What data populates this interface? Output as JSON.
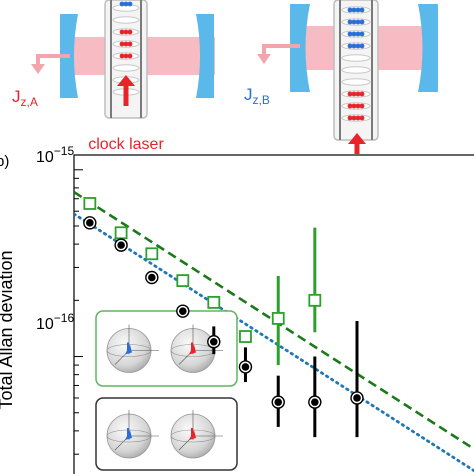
{
  "schematic": {
    "label_a_main": "J",
    "label_a_sub": "z,A",
    "label_b_main": "J",
    "label_b_sub": "z,B",
    "clock_laser_label": "clock laser",
    "colors": {
      "red": "#e8232a",
      "blue": "#2a6fd6",
      "mirror": "#5bb8ea",
      "beam": "#f6b5bd",
      "tube": "#bfbfbf"
    }
  },
  "panel_label": "b)",
  "chart_data": {
    "type": "scatter",
    "ylabel": "Total Allan deviation",
    "yscale": "log",
    "xscale": "log",
    "y_tick_labels": [
      {
        "value": 1e-15,
        "base": "10",
        "exp": "−15"
      },
      {
        "value": 1e-16,
        "base": "10",
        "exp": "−16"
      }
    ],
    "xlim": [
      1,
      100
    ],
    "ylim": [
      2.35e-17,
      1.2e-15
    ],
    "series": [
      {
        "color": "#2ca02c",
        "marker": "open-square",
        "points": [
          {
            "x": 1.2,
            "y": 6.6e-16
          },
          {
            "x": 1.72,
            "y": 4.6e-16
          },
          {
            "x": 2.45,
            "y": 3.55e-16
          },
          {
            "x": 3.5,
            "y": 2.55e-16
          },
          {
            "x": 5.0,
            "y": 1.95e-16
          },
          {
            "x": 7.2,
            "y": 1.28e-16
          },
          {
            "x": 10.5,
            "y": 1.6e-16,
            "ylo": 9e-17,
            "yhi": 2.7e-16
          },
          {
            "x": 16.0,
            "y": 2e-16,
            "ylo": 1.35e-16,
            "yhi": 4.9e-16
          }
        ]
      },
      {
        "color": "#000000",
        "marker": "filled-circle",
        "points": [
          {
            "x": 1.2,
            "y": 5.2e-16
          },
          {
            "x": 1.72,
            "y": 3.95e-16
          },
          {
            "x": 2.45,
            "y": 2.65e-16
          },
          {
            "x": 3.5,
            "y": 1.75e-16
          },
          {
            "x": 5.0,
            "y": 1.2e-16,
            "ylo": 1.03e-16,
            "yhi": 1.45e-16
          },
          {
            "x": 7.2,
            "y": 8.8e-17,
            "ylo": 7.3e-17,
            "yhi": 1.12e-16
          },
          {
            "x": 10.5,
            "y": 5.7e-17,
            "ylo": 4.2e-17,
            "yhi": 7.9e-17
          },
          {
            "x": 16.0,
            "y": 5.7e-17,
            "ylo": 3.7e-17,
            "yhi": 1e-16
          },
          {
            "x": 26.0,
            "y": 6e-17,
            "ylo": 3.7e-17,
            "yhi": 1.55e-16
          }
        ]
      }
    ],
    "fits": [
      {
        "color": "#1a7a1a",
        "style": "dashed",
        "x": [
          1,
          100
        ],
        "y": [
          7.6e-16,
          3.2e-17
        ]
      },
      {
        "color": "#1f77b4",
        "style": "dotted",
        "x": [
          1,
          100
        ],
        "y": [
          5.8e-16,
          2.45e-17
        ]
      }
    ],
    "insets": [
      {
        "border_color": "#5cb85c",
        "arrow_colors": [
          "#2a6fd6",
          "#e8232a"
        ]
      },
      {
        "border_color": "#333333",
        "arrow_colors": [
          "#2a6fd6",
          "#e8232a"
        ]
      }
    ]
  }
}
